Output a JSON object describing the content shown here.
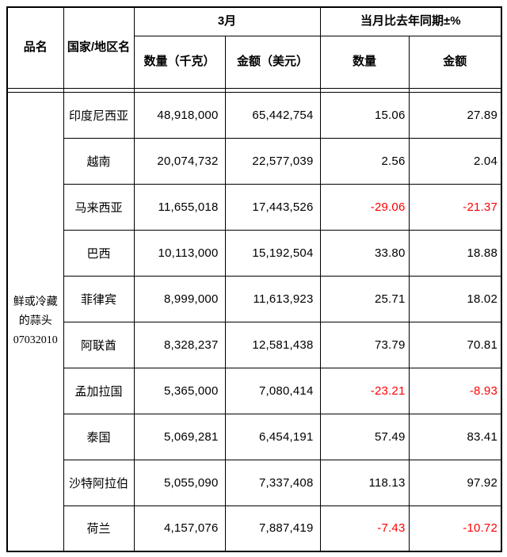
{
  "colors": {
    "background": "#ffffff",
    "border": "#000000",
    "text": "#000000",
    "negative": "#ff0000"
  },
  "table": {
    "headers": {
      "product": "品名",
      "country": "国家/地区名",
      "month_group": "3月",
      "yoy_group": "当月比去年同期±%",
      "qty_kg": "数量（千克）",
      "amount_usd": "金额（美元）",
      "qty": "数量",
      "amount": "金额"
    },
    "product_lines": [
      "鲜或冷藏",
      "的蒜头",
      "07032010"
    ],
    "rows": [
      {
        "country": "印度尼西亚",
        "qty": "48,918,000",
        "amount": "65,442,754",
        "qty_yoy": "15.06",
        "amount_yoy": "27.89"
      },
      {
        "country": "越南",
        "qty": "20,074,732",
        "amount": "22,577,039",
        "qty_yoy": "2.56",
        "amount_yoy": "2.04"
      },
      {
        "country": "马来西亚",
        "qty": "11,655,018",
        "amount": "17,443,526",
        "qty_yoy": "-29.06",
        "amount_yoy": "-21.37"
      },
      {
        "country": "巴西",
        "qty": "10,113,000",
        "amount": "15,192,504",
        "qty_yoy": "33.80",
        "amount_yoy": "18.88"
      },
      {
        "country": "菲律宾",
        "qty": "8,999,000",
        "amount": "11,613,923",
        "qty_yoy": "25.71",
        "amount_yoy": "18.02"
      },
      {
        "country": "阿联酋",
        "qty": "8,328,237",
        "amount": "12,581,438",
        "qty_yoy": "73.79",
        "amount_yoy": "70.81"
      },
      {
        "country": "孟加拉国",
        "qty": "5,365,000",
        "amount": "7,080,414",
        "qty_yoy": "-23.21",
        "amount_yoy": "-8.93"
      },
      {
        "country": "泰国",
        "qty": "5,069,281",
        "amount": "6,454,191",
        "qty_yoy": "57.49",
        "amount_yoy": "83.41"
      },
      {
        "country": "沙特阿拉伯",
        "qty": "5,055,090",
        "amount": "7,337,408",
        "qty_yoy": "118.13",
        "amount_yoy": "97.92"
      },
      {
        "country": "荷兰",
        "qty": "4,157,076",
        "amount": "7,887,419",
        "qty_yoy": "-7.43",
        "amount_yoy": "-10.72"
      }
    ]
  }
}
